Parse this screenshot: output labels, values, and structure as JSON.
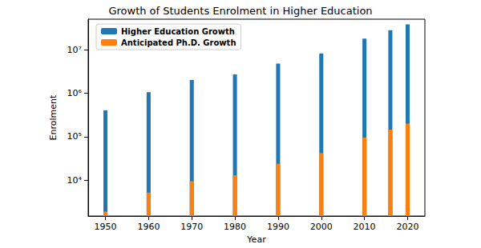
{
  "chart_data": {
    "type": "bar",
    "title": "Growth of Students Enrolment in Higher Education",
    "x_label": "Year",
    "y_label": "Enrolment",
    "x": [
      1950,
      1960,
      1970,
      1980,
      1990,
      2000,
      2010,
      2016,
      2020
    ],
    "series": [
      {
        "name": "Higher Education Growth",
        "color": "#1f77b4",
        "values": [
          400000,
          1050000,
          2000000,
          2700000,
          4800000,
          8200000,
          18000000,
          28000000,
          38000000
        ]
      },
      {
        "name": "Anticipated Ph.D. Growth",
        "color": "#ff7f0e",
        "values": [
          1900,
          5200,
          9500,
          13000,
          24000,
          42000,
          95000,
          145000,
          200000
        ]
      }
    ],
    "xlim": [
      1946,
      2024
    ],
    "xticks": [
      1950,
      1960,
      1970,
      1980,
      1990,
      2000,
      2010,
      2020
    ],
    "ylim": [
      1500,
      50000000
    ],
    "yticks": [
      {
        "value": 10000,
        "label": "10⁴"
      },
      {
        "value": 100000,
        "label": "10⁵"
      },
      {
        "value": 1000000,
        "label": "10⁶"
      },
      {
        "value": 10000000,
        "label": "10⁷"
      }
    ],
    "log": "y",
    "legend": "upper left",
    "grid": false
  }
}
